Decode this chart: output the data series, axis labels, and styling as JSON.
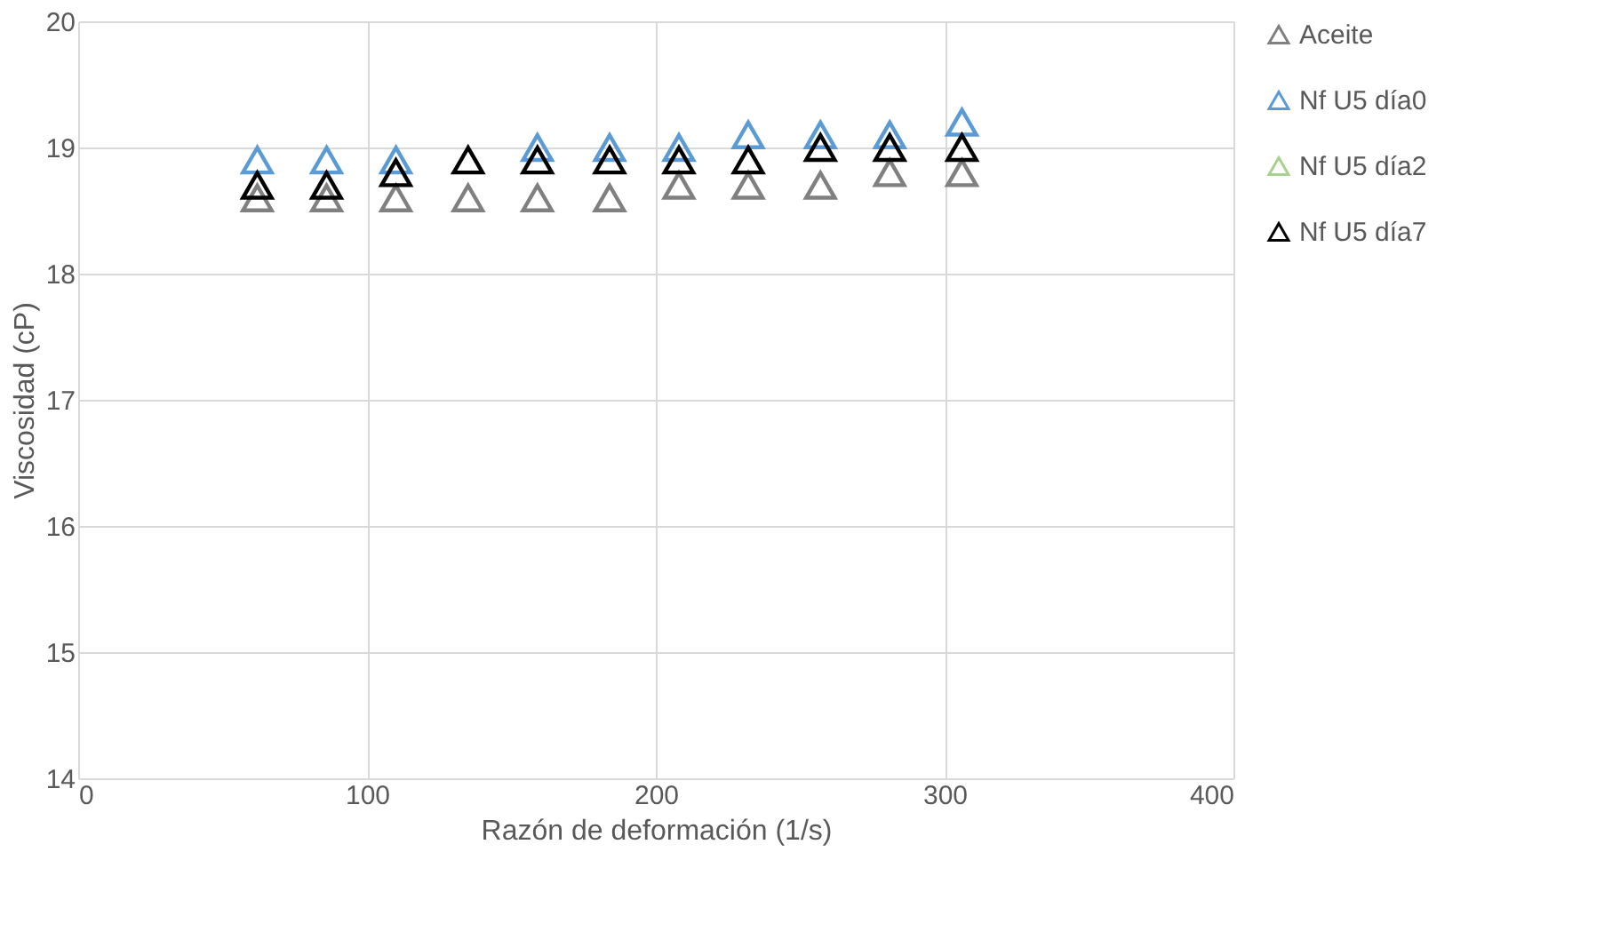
{
  "chart_data": {
    "type": "scatter",
    "xlabel": "Razón de deformación (1/s)",
    "ylabel": "Viscosidad (cP)",
    "x": [
      62,
      86,
      110,
      135,
      159,
      184,
      208,
      232,
      257,
      281,
      306
    ],
    "series": [
      {
        "name": "Aceite",
        "color": "#808080",
        "values": [
          18.6,
          18.6,
          18.6,
          18.6,
          18.6,
          18.6,
          18.7,
          18.7,
          18.7,
          18.8,
          18.8
        ]
      },
      {
        "name": "Nf U5 día0",
        "color": "#5b9bd5",
        "values": [
          18.9,
          18.9,
          18.9,
          null,
          19.0,
          19.0,
          19.0,
          19.1,
          19.1,
          19.1,
          19.2
        ]
      },
      {
        "name": "Nf U5 día2",
        "color": "#a9d18e",
        "values": [
          null,
          null,
          null,
          null,
          null,
          null,
          null,
          null,
          null,
          null,
          null
        ]
      },
      {
        "name": "Nf U5 día7",
        "color": "#000000",
        "values": [
          18.7,
          18.7,
          18.8,
          18.9,
          18.9,
          18.9,
          18.9,
          18.9,
          19.0,
          19.0,
          19.0
        ]
      }
    ],
    "xlim": [
      0,
      400
    ],
    "xticks": [
      0,
      100,
      200,
      300,
      400
    ],
    "ylim": [
      14,
      20
    ],
    "yticks": [
      14,
      15,
      16,
      17,
      18,
      19,
      20
    ],
    "grid": true,
    "legend": "right",
    "marker": "triangle"
  }
}
